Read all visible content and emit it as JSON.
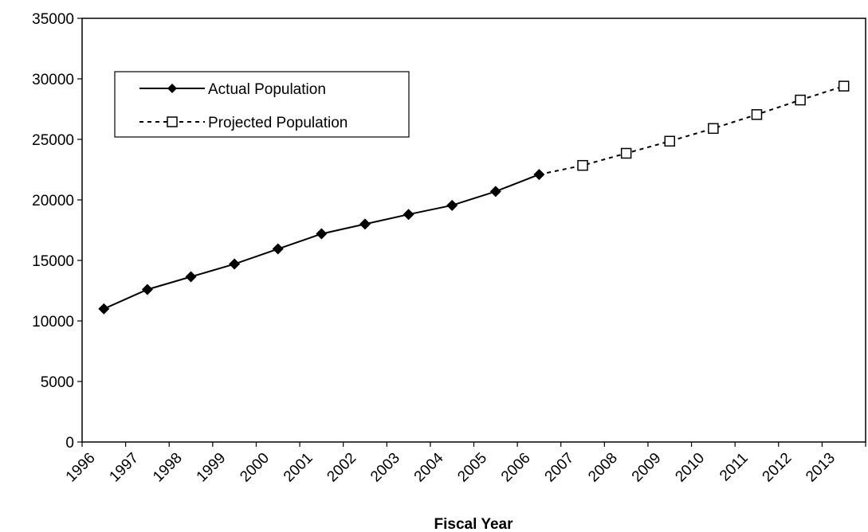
{
  "chart_data": {
    "type": "line",
    "title": "",
    "xlabel": "Fiscal Year",
    "ylabel": "",
    "x_categories": [
      "1996",
      "1997",
      "1998",
      "1999",
      "2000",
      "2001",
      "2002",
      "2003",
      "2004",
      "2005",
      "2006",
      "2007",
      "2008",
      "2009",
      "2010",
      "2011",
      "2012",
      "2013"
    ],
    "ylim": [
      0,
      35000
    ],
    "y_ticks": [
      "0",
      "5000",
      "10000",
      "15000",
      "20000",
      "25000",
      "30000",
      "35000"
    ],
    "grid": false,
    "legend_position": "top-left",
    "series": [
      {
        "name": "Actual Population",
        "style": "solid",
        "marker": "filled-diamond",
        "color": "#000000",
        "x": [
          "1996",
          "1997",
          "1998",
          "1999",
          "2000",
          "2001",
          "2002",
          "2003",
          "2004",
          "2005",
          "2006"
        ],
        "values": [
          11000,
          12600,
          13650,
          14700,
          15950,
          17200,
          18000,
          18800,
          19550,
          20700,
          22100
        ]
      },
      {
        "name": "Projected Population",
        "style": "dotted",
        "marker": "open-square",
        "color": "#000000",
        "x": [
          "2006",
          "2007",
          "2008",
          "2009",
          "2010",
          "2011",
          "2012",
          "2013"
        ],
        "values": [
          22100,
          22850,
          23850,
          24850,
          25900,
          27050,
          28250,
          29400
        ]
      }
    ]
  }
}
